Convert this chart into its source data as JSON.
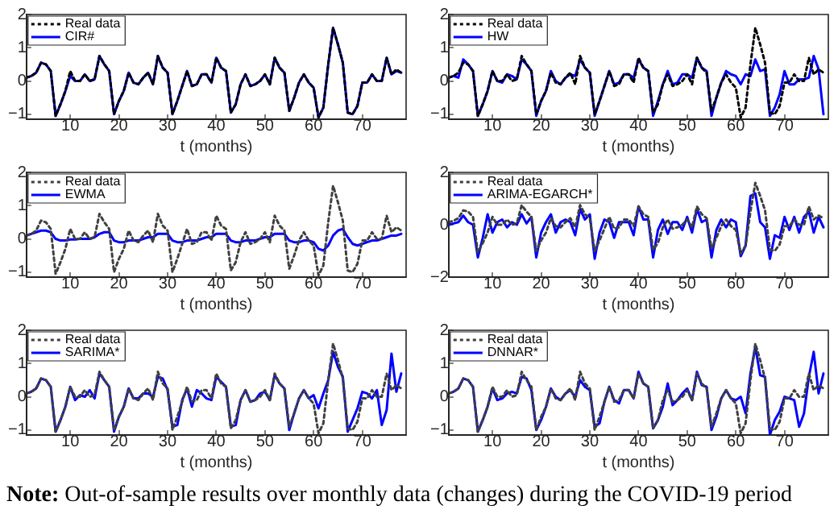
{
  "chart_data": [
    {
      "type": "line",
      "xlabel": "t (months)",
      "xlim": [
        1,
        79
      ],
      "xticks": [
        10,
        20,
        30,
        40,
        50,
        60,
        70
      ],
      "ylim": [
        -1.15,
        2
      ],
      "yticks": [
        -1,
        0,
        1,
        2
      ],
      "legend": "top left",
      "grid": false,
      "x": [
        1,
        2,
        3,
        4,
        5,
        6,
        7,
        8,
        9,
        10,
        11,
        12,
        13,
        14,
        15,
        16,
        17,
        18,
        19,
        20,
        21,
        22,
        23,
        24,
        25,
        26,
        27,
        28,
        29,
        30,
        31,
        32,
        33,
        34,
        35,
        36,
        37,
        38,
        39,
        40,
        41,
        42,
        43,
        44,
        45,
        46,
        47,
        48,
        49,
        50,
        51,
        52,
        53,
        54,
        55,
        56,
        57,
        58,
        59,
        60,
        61,
        62,
        63,
        64,
        65,
        66,
        67,
        68,
        69,
        70,
        71,
        72,
        73,
        74,
        75,
        76,
        77,
        78
      ],
      "series": [
        {
          "name": "Real data",
          "color": "#000000",
          "line_style": "dotted",
          "values": [
            0.1,
            0.15,
            0.25,
            0.55,
            0.5,
            0.3,
            -1.05,
            -0.7,
            -0.3,
            0.3,
            0,
            0,
            0.2,
            0,
            0.05,
            0.75,
            0.5,
            0.3,
            -1,
            -0.6,
            -0.3,
            0.25,
            -0.05,
            -0.1,
            0.1,
            0.25,
            -0.1,
            0.75,
            0.4,
            0.25,
            -1,
            -0.6,
            -0.15,
            0.3,
            -0.15,
            -0.1,
            0.2,
            0.2,
            -0.05,
            0.7,
            0.4,
            0.3,
            -0.95,
            -0.7,
            -0.1,
            0.2,
            -0.15,
            -0.1,
            0,
            0.2,
            -0.1,
            0.7,
            0.4,
            0.25,
            -0.9,
            -0.5,
            -0.05,
            0.2,
            -0.05,
            -0.2,
            -1.1,
            -0.8,
            0.5,
            1.6,
            1.1,
            0.55,
            -0.95,
            -1,
            -0.75,
            -0.05,
            -0.05,
            0.2,
            0,
            0,
            0.7,
            0.2,
            0.35,
            0.25
          ]
        },
        {
          "name": "CIR#",
          "color": "#0000ff",
          "line_style": "solid",
          "values": [
            0.1,
            0.15,
            0.25,
            0.55,
            0.5,
            0.3,
            -1.05,
            -0.7,
            -0.3,
            0.15,
            0,
            0,
            0.2,
            0,
            0.05,
            0.75,
            0.5,
            0.3,
            -1,
            -0.6,
            -0.3,
            0.25,
            -0.05,
            -0.1,
            0.1,
            0.25,
            -0.1,
            0.75,
            0.4,
            0.25,
            -1,
            -0.6,
            -0.15,
            0.3,
            -0.15,
            -0.1,
            0.2,
            0.2,
            -0.05,
            0.7,
            0.4,
            0.3,
            -0.95,
            -0.7,
            -0.1,
            0.2,
            -0.15,
            -0.1,
            0,
            0.2,
            -0.1,
            0.7,
            0.4,
            0.25,
            -0.9,
            -0.5,
            -0.05,
            0.2,
            -0.05,
            -0.2,
            -1.1,
            -0.8,
            0.5,
            1.6,
            1.1,
            0.55,
            -0.95,
            -1,
            -0.75,
            -0.05,
            -0.05,
            0.2,
            0,
            0,
            0.7,
            0.2,
            0.3,
            0.25
          ]
        }
      ]
    },
    {
      "type": "line",
      "xlabel": "t (months)",
      "xlim": [
        1,
        79
      ],
      "xticks": [
        10,
        20,
        30,
        40,
        50,
        60,
        70
      ],
      "ylim": [
        -1.15,
        2
      ],
      "yticks": [
        -1,
        0,
        1,
        2
      ],
      "legend": "top left",
      "grid": false,
      "x": [
        1,
        2,
        3,
        4,
        5,
        6,
        7,
        8,
        9,
        10,
        11,
        12,
        13,
        14,
        15,
        16,
        17,
        18,
        19,
        20,
        21,
        22,
        23,
        24,
        25,
        26,
        27,
        28,
        29,
        30,
        31,
        32,
        33,
        34,
        35,
        36,
        37,
        38,
        39,
        40,
        41,
        42,
        43,
        44,
        45,
        46,
        47,
        48,
        49,
        50,
        51,
        52,
        53,
        54,
        55,
        56,
        57,
        58,
        59,
        60,
        61,
        62,
        63,
        64,
        65,
        66,
        67,
        68,
        69,
        70,
        71,
        72,
        73,
        74,
        75,
        76,
        77,
        78
      ],
      "series": [
        {
          "name": "Real data",
          "color": "#000000",
          "line_style": "dotted",
          "values": [
            0.1,
            0.15,
            0.25,
            0.55,
            0.5,
            0.3,
            -1.05,
            -0.7,
            -0.3,
            0.3,
            0,
            0,
            0.2,
            0,
            0.05,
            0.75,
            0.5,
            0.3,
            -1,
            -0.6,
            -0.3,
            0.25,
            -0.05,
            -0.1,
            0.1,
            0.25,
            -0.1,
            0.75,
            0.4,
            0.25,
            -1,
            -0.6,
            -0.15,
            0.3,
            -0.15,
            -0.1,
            0.2,
            0.2,
            -0.05,
            0.7,
            0.4,
            0.3,
            -0.95,
            -0.7,
            -0.1,
            0.2,
            -0.15,
            -0.1,
            0,
            0.2,
            -0.1,
            0.7,
            0.4,
            0.25,
            -0.9,
            -0.5,
            -0.05,
            0.2,
            -0.05,
            -0.2,
            -1.1,
            -0.8,
            0.5,
            1.6,
            1.1,
            0.55,
            -0.95,
            -1,
            -0.75,
            -0.05,
            -0.05,
            0.2,
            0,
            0,
            0.7,
            0.2,
            0.35,
            0.25
          ]
        },
        {
          "name": "HW",
          "color": "#0000ff",
          "line_style": "solid",
          "values": [
            0.1,
            0.15,
            0.1,
            0.65,
            0.5,
            0.3,
            -1.05,
            -0.7,
            -0.3,
            0.3,
            0,
            -0.05,
            0.2,
            0.15,
            0.05,
            0.65,
            0.5,
            0.3,
            -1.05,
            -0.6,
            -0.3,
            0.3,
            0,
            -0.1,
            0.1,
            0.2,
            0.15,
            0.65,
            0.4,
            0.25,
            -1.05,
            -0.6,
            -0.15,
            0.3,
            -0.1,
            -0.05,
            0.2,
            0.2,
            0.1,
            0.65,
            0.4,
            0.3,
            -1.05,
            -0.6,
            -0.1,
            0.3,
            -0.1,
            -0.05,
            0.2,
            0.2,
            0.1,
            0.7,
            0.4,
            0.3,
            -1.05,
            -0.5,
            -0.05,
            0.3,
            0.2,
            0.15,
            -0.1,
            0.2,
            0.15,
            0.65,
            0.3,
            0.35,
            -1.05,
            -0.8,
            -0.4,
            0.3,
            -0.1,
            -0.1,
            0.05,
            0.05,
            0.1,
            0.75,
            0.35,
            -1
          ]
        }
      ]
    },
    {
      "type": "line",
      "xlabel": "t (months)",
      "xlim": [
        1,
        79
      ],
      "xticks": [
        10,
        20,
        30,
        40,
        50,
        60,
        70
      ],
      "ylim": [
        -1.15,
        2
      ],
      "yticks": [
        -1,
        0,
        1,
        2
      ],
      "legend": "top left",
      "grid": false,
      "x": [
        1,
        2,
        3,
        4,
        5,
        6,
        7,
        8,
        9,
        10,
        11,
        12,
        13,
        14,
        15,
        16,
        17,
        18,
        19,
        20,
        21,
        22,
        23,
        24,
        25,
        26,
        27,
        28,
        29,
        30,
        31,
        32,
        33,
        34,
        35,
        36,
        37,
        38,
        39,
        40,
        41,
        42,
        43,
        44,
        45,
        46,
        47,
        48,
        49,
        50,
        51,
        52,
        53,
        54,
        55,
        56,
        57,
        58,
        59,
        60,
        61,
        62,
        63,
        64,
        65,
        66,
        67,
        68,
        69,
        70,
        71,
        72,
        73,
        74,
        75,
        76,
        77,
        78
      ],
      "series": [
        {
          "name": "Real data",
          "color": "#404040",
          "line_style": "dotted",
          "values": [
            0.1,
            0.15,
            0.25,
            0.55,
            0.5,
            0.3,
            -1.05,
            -0.7,
            -0.3,
            0.3,
            0,
            0,
            0.2,
            0,
            0.05,
            0.75,
            0.5,
            0.3,
            -1,
            -0.6,
            -0.3,
            0.25,
            -0.05,
            -0.1,
            0.1,
            0.25,
            -0.1,
            0.75,
            0.4,
            0.25,
            -1,
            -0.6,
            -0.15,
            0.3,
            -0.15,
            -0.1,
            0.2,
            0.2,
            -0.05,
            0.7,
            0.4,
            0.3,
            -0.95,
            -0.7,
            -0.1,
            0.2,
            -0.15,
            -0.1,
            0,
            0.2,
            -0.1,
            0.7,
            0.4,
            0.25,
            -0.9,
            -0.5,
            -0.05,
            0.2,
            -0.05,
            -0.2,
            -1.1,
            -0.8,
            0.5,
            1.6,
            1.1,
            0.55,
            -0.95,
            -1,
            -0.75,
            -0.05,
            -0.05,
            0.2,
            0,
            0,
            0.7,
            0.2,
            0.35,
            0.25
          ]
        },
        {
          "name": "EWMA",
          "color": "#0000ff",
          "line_style": "solid",
          "values": [
            0.1,
            0.15,
            0.2,
            0.25,
            0.25,
            0.2,
            0,
            -0.05,
            -0.05,
            -0.02,
            -0.02,
            0,
            0,
            0,
            0.05,
            0.15,
            0.2,
            0.2,
            -0.05,
            -0.1,
            -0.1,
            -0.05,
            -0.05,
            -0.05,
            0,
            0.05,
            0.05,
            0.15,
            0.15,
            0.15,
            -0.05,
            -0.1,
            -0.1,
            -0.05,
            -0.05,
            -0.05,
            0,
            0.05,
            0.05,
            0.15,
            0.15,
            0.15,
            -0.05,
            -0.1,
            -0.1,
            -0.05,
            -0.05,
            -0.05,
            0,
            0.05,
            0.05,
            0.15,
            0.15,
            0.15,
            -0.05,
            -0.1,
            -0.1,
            -0.05,
            -0.05,
            -0.1,
            -0.3,
            -0.35,
            -0.2,
            0.1,
            0.25,
            0.3,
            0.05,
            -0.15,
            -0.2,
            -0.15,
            -0.1,
            -0.05,
            -0.05,
            0,
            0.05,
            0.1,
            0.1,
            0.15
          ]
        }
      ]
    },
    {
      "type": "line",
      "xlabel": "t (months)",
      "xlim": [
        1,
        79
      ],
      "xticks": [
        10,
        20,
        30,
        40,
        50,
        60,
        70
      ],
      "ylim": [
        -2,
        2
      ],
      "yticks": [
        -2,
        0,
        2
      ],
      "legend": "top left",
      "grid": false,
      "x": [
        1,
        2,
        3,
        4,
        5,
        6,
        7,
        8,
        9,
        10,
        11,
        12,
        13,
        14,
        15,
        16,
        17,
        18,
        19,
        20,
        21,
        22,
        23,
        24,
        25,
        26,
        27,
        28,
        29,
        30,
        31,
        32,
        33,
        34,
        35,
        36,
        37,
        38,
        39,
        40,
        41,
        42,
        43,
        44,
        45,
        46,
        47,
        48,
        49,
        50,
        51,
        52,
        53,
        54,
        55,
        56,
        57,
        58,
        59,
        60,
        61,
        62,
        63,
        64,
        65,
        66,
        67,
        68,
        69,
        70,
        71,
        72,
        73,
        74,
        75,
        76,
        77,
        78
      ],
      "series": [
        {
          "name": "Real data",
          "color": "#404040",
          "line_style": "dotted",
          "values": [
            0.1,
            0.15,
            0.25,
            0.55,
            0.5,
            0.3,
            -1.05,
            -0.7,
            -0.3,
            0.3,
            0,
            0,
            0.2,
            0,
            0.05,
            0.75,
            0.5,
            0.3,
            -1,
            -0.6,
            -0.3,
            0.25,
            -0.05,
            -0.1,
            0.1,
            0.25,
            -0.1,
            0.75,
            0.4,
            0.25,
            -1,
            -0.6,
            -0.15,
            0.3,
            -0.15,
            -0.1,
            0.2,
            0.2,
            -0.05,
            0.7,
            0.4,
            0.3,
            -0.95,
            -0.7,
            -0.1,
            0.2,
            -0.15,
            -0.1,
            0,
            0.2,
            -0.1,
            0.7,
            0.4,
            0.25,
            -0.9,
            -0.5,
            -0.05,
            0.2,
            -0.05,
            -0.2,
            -1.1,
            -0.8,
            0.5,
            1.6,
            1.1,
            0.55,
            -0.95,
            -1,
            -0.75,
            -0.05,
            -0.05,
            0.2,
            0,
            0,
            0.7,
            0.2,
            0.35,
            0.25
          ]
        },
        {
          "name": "ARIMA-EGARCH*",
          "color": "#0000ff",
          "line_style": "solid",
          "values": [
            0,
            0.05,
            0.1,
            0.35,
            0.1,
            0,
            -1.25,
            -0.5,
            0.4,
            -0.3,
            0.1,
            0.2,
            -0.1,
            0.1,
            0,
            0.4,
            0.05,
            0.3,
            -1.25,
            -0.3,
            0.1,
            0.4,
            -0.3,
            0.1,
            0.2,
            0.1,
            -0.4,
            0.6,
            0.2,
            0.4,
            -1.3,
            -0.3,
            0.2,
            0.1,
            -0.5,
            0.1,
            0.1,
            0.1,
            -0.4,
            0.7,
            0.2,
            0.2,
            -1.25,
            -0.2,
            0.2,
            -0.35,
            0.1,
            0.1,
            -0.2,
            0.3,
            -0.3,
            0.6,
            0.1,
            0.2,
            -1.25,
            -0.2,
            0.2,
            -0.1,
            0.2,
            0.1,
            -1.2,
            -0.8,
            1.1,
            1.2,
            0.1,
            -0.1,
            -1.3,
            -0.4,
            -0.5,
            0.3,
            -0.2,
            0.3,
            -0.3,
            0.3,
            0.5,
            -0.3,
            0.3,
            -0.1
          ]
        }
      ]
    },
    {
      "type": "line",
      "xlabel": "t (months)",
      "xlim": [
        1,
        79
      ],
      "xticks": [
        10,
        20,
        30,
        40,
        50,
        60,
        70
      ],
      "ylim": [
        -1.15,
        2
      ],
      "yticks": [
        -1,
        0,
        1,
        2
      ],
      "legend": "top left",
      "grid": false,
      "x": [
        1,
        2,
        3,
        4,
        5,
        6,
        7,
        8,
        9,
        10,
        11,
        12,
        13,
        14,
        15,
        16,
        17,
        18,
        19,
        20,
        21,
        22,
        23,
        24,
        25,
        26,
        27,
        28,
        29,
        30,
        31,
        32,
        33,
        34,
        35,
        36,
        37,
        38,
        39,
        40,
        41,
        42,
        43,
        44,
        45,
        46,
        47,
        48,
        49,
        50,
        51,
        52,
        53,
        54,
        55,
        56,
        57,
        58,
        59,
        60,
        61,
        62,
        63,
        64,
        65,
        66,
        67,
        68,
        69,
        70,
        71,
        72,
        73,
        74,
        75,
        76,
        77,
        78
      ],
      "series": [
        {
          "name": "Real data",
          "color": "#404040",
          "line_style": "dotted",
          "values": [
            0.1,
            0.15,
            0.25,
            0.55,
            0.5,
            0.3,
            -1.05,
            -0.7,
            -0.3,
            0.3,
            0,
            0,
            0.2,
            0,
            0.05,
            0.75,
            0.5,
            0.3,
            -1,
            -0.6,
            -0.3,
            0.25,
            -0.05,
            -0.1,
            0.1,
            0.25,
            -0.1,
            0.75,
            0.4,
            0.25,
            -1,
            -0.6,
            -0.15,
            0.3,
            -0.15,
            -0.1,
            0.2,
            0.2,
            -0.05,
            0.7,
            0.4,
            0.3,
            -0.95,
            -0.7,
            -0.1,
            0.2,
            -0.15,
            -0.1,
            0,
            0.2,
            -0.1,
            0.7,
            0.4,
            0.25,
            -0.9,
            -0.5,
            -0.05,
            0.2,
            -0.05,
            -0.2,
            -1.1,
            -0.8,
            0.5,
            1.6,
            1.1,
            0.55,
            -0.95,
            -1,
            -0.75,
            -0.05,
            -0.05,
            0.2,
            0,
            0,
            0.7,
            0.2,
            0.35,
            0.25
          ]
        },
        {
          "name": "SARIMA*",
          "color": "#0000ff",
          "line_style": "solid",
          "values": [
            0.1,
            0.15,
            0.25,
            0.55,
            0.5,
            0.3,
            -1.05,
            -0.7,
            -0.3,
            0.3,
            -0.1,
            0.05,
            0,
            0.2,
            -0.05,
            0.7,
            0.5,
            0.3,
            -1.05,
            -0.6,
            -0.3,
            0.25,
            -0.05,
            -0.05,
            0.1,
            0.1,
            0,
            0.6,
            0.55,
            0.2,
            -0.9,
            -0.85,
            -0.1,
            0.25,
            -0.3,
            0.2,
            0.1,
            -0.05,
            -0.1,
            0.6,
            0.45,
            0.3,
            -0.9,
            -0.85,
            -0.1,
            0.2,
            -0.15,
            -0.1,
            0.1,
            0.15,
            -0.1,
            0.65,
            0.4,
            0.25,
            -1,
            -0.5,
            -0.05,
            0.2,
            -0.05,
            0.05,
            -0.35,
            0.1,
            0.5,
            1.35,
            0.9,
            0.6,
            -1.05,
            -0.7,
            -0.35,
            0.15,
            0.1,
            -0.05,
            0.2,
            -0.85,
            -0.4,
            1.3,
            0.15,
            0.7
          ]
        }
      ]
    },
    {
      "type": "line",
      "xlabel": "t (months)",
      "xlim": [
        1,
        79
      ],
      "xticks": [
        10,
        20,
        30,
        40,
        50,
        60,
        70
      ],
      "ylim": [
        -1.15,
        2
      ],
      "yticks": [
        -1,
        0,
        1,
        2
      ],
      "legend": "top left",
      "grid": false,
      "x": [
        1,
        2,
        3,
        4,
        5,
        6,
        7,
        8,
        9,
        10,
        11,
        12,
        13,
        14,
        15,
        16,
        17,
        18,
        19,
        20,
        21,
        22,
        23,
        24,
        25,
        26,
        27,
        28,
        29,
        30,
        31,
        32,
        33,
        34,
        35,
        36,
        37,
        38,
        39,
        40,
        41,
        42,
        43,
        44,
        45,
        46,
        47,
        48,
        49,
        50,
        51,
        52,
        53,
        54,
        55,
        56,
        57,
        58,
        59,
        60,
        61,
        62,
        63,
        64,
        65,
        66,
        67,
        68,
        69,
        70,
        71,
        72,
        73,
        74,
        75,
        76,
        77,
        78
      ],
      "annotations": [
        "Note: Out-of-sample results over monthly data (changes) during the COVID-19 period"
      ],
      "series": [
        {
          "name": "Real data",
          "color": "#404040",
          "line_style": "dotted",
          "values": [
            0.1,
            0.15,
            0.25,
            0.55,
            0.5,
            0.3,
            -1.05,
            -0.7,
            -0.3,
            0.3,
            0,
            0,
            0.2,
            0,
            0.05,
            0.75,
            0.5,
            0.3,
            -1,
            -0.6,
            -0.3,
            0.25,
            -0.05,
            -0.1,
            0.1,
            0.25,
            -0.1,
            0.75,
            0.4,
            0.25,
            -1,
            -0.6,
            -0.15,
            0.3,
            -0.15,
            -0.1,
            0.2,
            0.2,
            -0.05,
            0.7,
            0.4,
            0.3,
            -0.95,
            -0.7,
            -0.1,
            0.2,
            -0.15,
            -0.1,
            0,
            0.2,
            -0.1,
            0.7,
            0.4,
            0.25,
            -0.9,
            -0.5,
            -0.05,
            0.2,
            -0.05,
            -0.2,
            -1.1,
            -0.8,
            0.5,
            1.6,
            1.1,
            0.55,
            -0.95,
            -1,
            -0.75,
            -0.05,
            -0.05,
            0.2,
            0,
            0,
            0.7,
            0.2,
            0.35,
            0.25
          ]
        },
        {
          "name": "DNNAR*",
          "color": "#0000ff",
          "line_style": "solid",
          "values": [
            0.1,
            0.15,
            0.25,
            0.55,
            0.5,
            0.3,
            -1.05,
            -0.7,
            -0.3,
            0.25,
            -0.1,
            -0.05,
            0.1,
            0.15,
            0.1,
            0.6,
            0.55,
            0.2,
            -1,
            -0.7,
            -0.3,
            0.25,
            0,
            -0.1,
            0.1,
            0.2,
            0,
            0.5,
            0.3,
            0.2,
            -0.9,
            -0.8,
            -0.15,
            0.3,
            -0.1,
            -0.2,
            0.2,
            0.2,
            -0.05,
            0.75,
            0.4,
            0.3,
            -0.95,
            -0.7,
            -0.3,
            0.4,
            -0.25,
            -0.1,
            0.1,
            0.25,
            -0.1,
            0.75,
            0.35,
            0.3,
            -1,
            -0.6,
            -0.05,
            0.2,
            -0.05,
            -0.1,
            0,
            -0.5,
            0.7,
            1.5,
            0.65,
            0.6,
            -1.15,
            -0.7,
            -0.45,
            0,
            -0.05,
            -0.1,
            -0.9,
            -0.5,
            0.6,
            1.35,
            0.1,
            0.7
          ]
        }
      ]
    }
  ]
}
